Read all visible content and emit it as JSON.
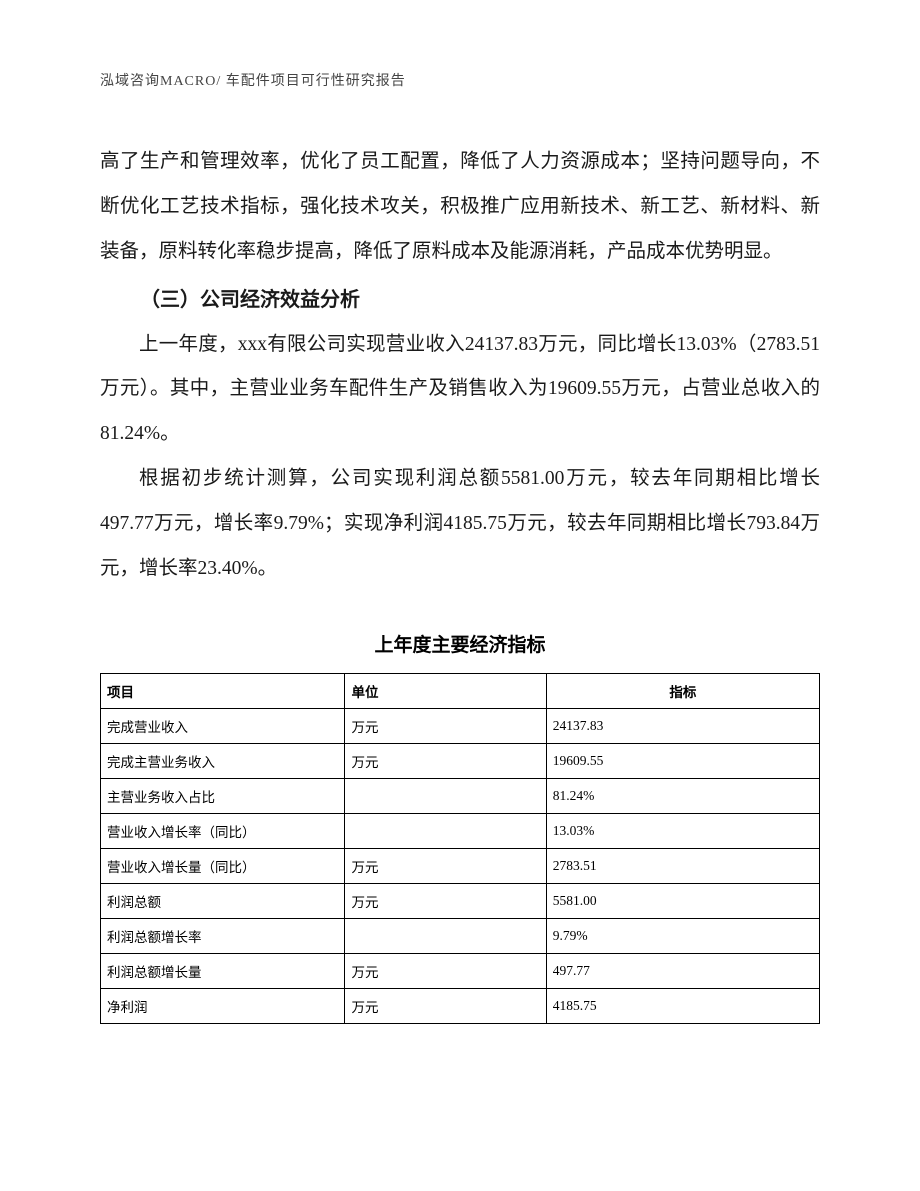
{
  "header": {
    "text": "泓域咨询MACRO/   车配件项目可行性研究报告"
  },
  "body": {
    "p1": "高了生产和管理效率，优化了员工配置，降低了人力资源成本；坚持问题导向，不断优化工艺技术指标，强化技术攻关，积极推广应用新技术、新工艺、新材料、新装备，原料转化率稳步提高，降低了原料成本及能源消耗，产品成本优势明显。",
    "heading": "（三）公司经济效益分析",
    "p2": "上一年度，xxx有限公司实现营业收入24137.83万元，同比增长13.03%（2783.51万元）。其中，主营业业务车配件生产及销售收入为19609.55万元，占营业总收入的81.24%。",
    "p3": "根据初步统计测算，公司实现利润总额5581.00万元，较去年同期相比增长497.77万元，增长率9.79%；实现净利润4185.75万元，较去年同期相比增长793.84万元，增长率23.40%。"
  },
  "table": {
    "title": "上年度主要经济指标",
    "columns": {
      "item": "项目",
      "unit": "单位",
      "value": "指标"
    },
    "rows": [
      {
        "item": "完成营业收入",
        "unit": "万元",
        "value": "24137.83"
      },
      {
        "item": "完成主营业务收入",
        "unit": "万元",
        "value": "19609.55"
      },
      {
        "item": "主营业务收入占比",
        "unit": "",
        "value": "81.24%"
      },
      {
        "item": "营业收入增长率（同比）",
        "unit": "",
        "value": "13.03%"
      },
      {
        "item": "营业收入增长量（同比）",
        "unit": "万元",
        "value": "2783.51"
      },
      {
        "item": "利润总额",
        "unit": "万元",
        "value": "5581.00"
      },
      {
        "item": "利润总额增长率",
        "unit": "",
        "value": "9.79%"
      },
      {
        "item": "利润总额增长量",
        "unit": "万元",
        "value": "497.77"
      },
      {
        "item": "净利润",
        "unit": "万元",
        "value": "4185.75"
      }
    ]
  }
}
